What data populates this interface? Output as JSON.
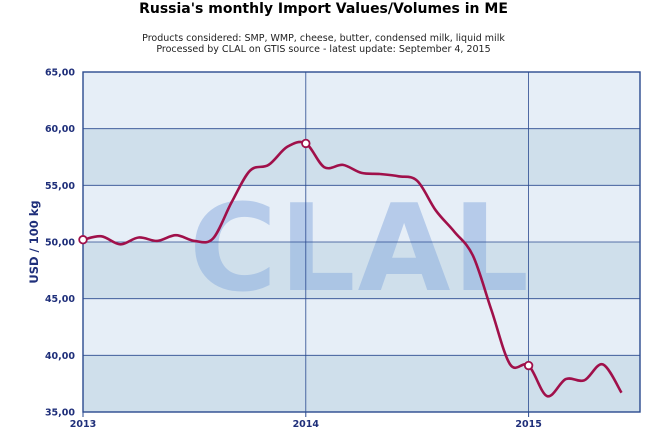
{
  "chart_data": {
    "type": "line",
    "title": "Russia's monthly Import Values/Volumes in ME",
    "subtitle_lines": [
      "Products considered: SMP, WMP, cheese, butter, condensed milk, liquid milk",
      "Processed by CLAL on GTIS source - latest update: September 4, 2015"
    ],
    "watermark": "CLAL",
    "ylabel": "USD / 100 kg",
    "xlabel": "",
    "ylim": [
      35,
      65
    ],
    "y_ticks": [
      "35,00",
      "40,00",
      "45,00",
      "50,00",
      "55,00",
      "60,00",
      "65,00"
    ],
    "y_tick_values": [
      35,
      40,
      45,
      50,
      55,
      60,
      65
    ],
    "x_ticks": [
      "2013",
      "2014",
      "2015"
    ],
    "x_tick_values": [
      2013,
      2014,
      2015
    ],
    "xlim": [
      2013,
      2015.5
    ],
    "grid": true,
    "line_color": "#a0104a",
    "band_colors": [
      "#cfdfeb",
      "#e6eef7"
    ],
    "axis_color": "#2a4a8f",
    "series": [
      {
        "name": "",
        "points": [
          [
            2013.0,
            50.2
          ],
          [
            2013.083,
            50.5
          ],
          [
            2013.167,
            49.8
          ],
          [
            2013.25,
            50.4
          ],
          [
            2013.333,
            50.1
          ],
          [
            2013.417,
            50.6
          ],
          [
            2013.5,
            50.1
          ],
          [
            2013.583,
            50.3
          ],
          [
            2013.667,
            53.5
          ],
          [
            2013.75,
            56.3
          ],
          [
            2013.833,
            56.8
          ],
          [
            2013.917,
            58.4
          ],
          [
            2014.0,
            58.7
          ],
          [
            2014.083,
            56.6
          ],
          [
            2014.167,
            56.8
          ],
          [
            2014.25,
            56.1
          ],
          [
            2014.333,
            56.0
          ],
          [
            2014.417,
            55.8
          ],
          [
            2014.5,
            55.4
          ],
          [
            2014.583,
            52.8
          ],
          [
            2014.667,
            50.9
          ],
          [
            2014.75,
            48.8
          ],
          [
            2014.833,
            44.0
          ],
          [
            2014.917,
            39.2
          ],
          [
            2015.0,
            39.1
          ],
          [
            2015.083,
            36.4
          ],
          [
            2015.167,
            37.9
          ],
          [
            2015.25,
            37.8
          ],
          [
            2015.333,
            39.2
          ],
          [
            2015.417,
            36.7
          ]
        ],
        "markers_at": [
          2013.0,
          2014.0,
          2015.0
        ]
      }
    ]
  }
}
